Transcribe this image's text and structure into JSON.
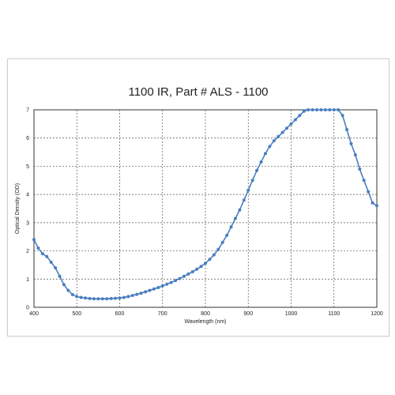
{
  "chart_data": {
    "type": "line",
    "title": "1100 IR, Part # ALS - 1100",
    "xlabel": "Wavelength (nm)",
    "ylabel": "Optical Density (OD)",
    "xlim": [
      400,
      1200
    ],
    "ylim": [
      0,
      7
    ],
    "xticks": [
      400,
      500,
      600,
      700,
      800,
      900,
      1000,
      1100,
      1200
    ],
    "yticks": [
      0,
      1,
      2,
      3,
      4,
      5,
      6,
      7
    ],
    "grid": true,
    "legend": "none",
    "series_color": "#4a7ebf",
    "series": [
      {
        "x": [
          400,
          410,
          420,
          430,
          440,
          450,
          460,
          470,
          480,
          490,
          500,
          510,
          520,
          530,
          540,
          550,
          560,
          570,
          580,
          590,
          600,
          610,
          620,
          630,
          640,
          650,
          660,
          670,
          680,
          690,
          700,
          710,
          720,
          730,
          740,
          750,
          760,
          770,
          780,
          790,
          800,
          810,
          820,
          830,
          840,
          850,
          860,
          870,
          880,
          890,
          900,
          910,
          920,
          930,
          940,
          950,
          960,
          970,
          980,
          990,
          1000,
          1010,
          1020,
          1030,
          1040,
          1050,
          1060,
          1070,
          1080,
          1090,
          1100,
          1110,
          1120,
          1130,
          1140,
          1150,
          1160,
          1170,
          1180,
          1190,
          1200
        ],
        "y": [
          2.4,
          2.1,
          1.9,
          1.8,
          1.6,
          1.4,
          1.1,
          0.8,
          0.6,
          0.45,
          0.38,
          0.35,
          0.33,
          0.31,
          0.3,
          0.3,
          0.3,
          0.3,
          0.31,
          0.32,
          0.33,
          0.35,
          0.38,
          0.42,
          0.46,
          0.5,
          0.55,
          0.6,
          0.65,
          0.7,
          0.76,
          0.82,
          0.88,
          0.95,
          1.02,
          1.1,
          1.18,
          1.26,
          1.35,
          1.45,
          1.56,
          1.7,
          1.86,
          2.05,
          2.3,
          2.55,
          2.85,
          3.15,
          3.45,
          3.8,
          4.15,
          4.5,
          4.85,
          5.15,
          5.45,
          5.7,
          5.9,
          6.05,
          6.2,
          6.35,
          6.5,
          6.65,
          6.8,
          6.95,
          7.0,
          7.0,
          7.0,
          7.0,
          7.0,
          7.0,
          7.0,
          7.0,
          6.8,
          6.3,
          5.8,
          5.4,
          4.9,
          4.5,
          4.1,
          3.7,
          3.6
        ]
      }
    ]
  }
}
